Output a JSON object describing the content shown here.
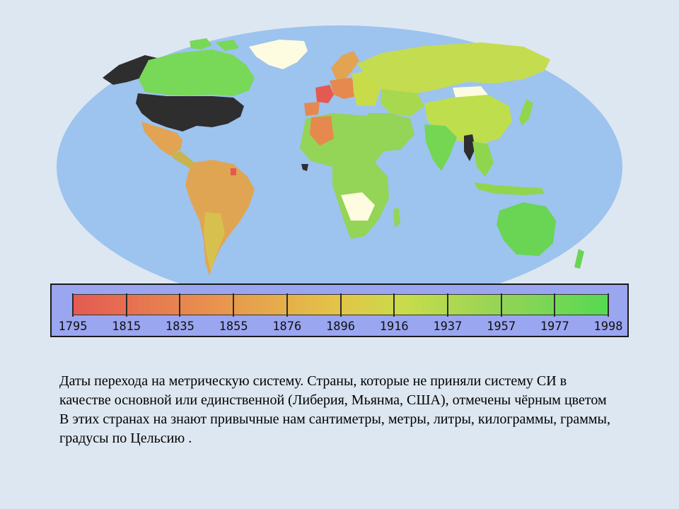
{
  "legend": {
    "years": [
      "1795",
      "1815",
      "1835",
      "1855",
      "1876",
      "1896",
      "1916",
      "1937",
      "1957",
      "1977",
      "1998"
    ]
  },
  "caption": {
    "line1": "Даты перехода на метрическую систему. Страны, которые не приняли систему СИ в качестве основной или единственной (Либерия, Мьянма, США), отмечены чёрным цветом",
    "line2": "В этих  странах на знают привычные нам сантиметры, метры, литры, килограммы, граммы, градусы по Цельсию ."
  },
  "colors": {
    "ocean": "#9dc3ef",
    "non_metric": "#2e2e2e",
    "no_data": "#fdfbe0",
    "early": "#e45a52",
    "late": "#55d952"
  }
}
